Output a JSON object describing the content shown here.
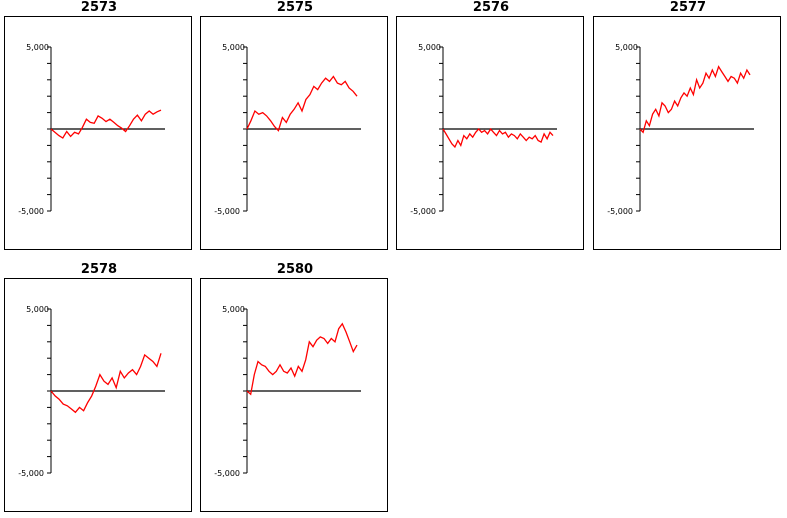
{
  "chart_data": [
    {
      "type": "line",
      "title": "2573",
      "ylim": [
        -5000,
        5000
      ],
      "yticks": [
        "5,000",
        "-5,000"
      ],
      "series": [
        {
          "color": "#ff0000",
          "x": [
            0,
            1,
            2,
            3,
            4,
            5,
            6,
            7,
            8,
            9,
            10,
            11,
            12,
            13,
            14,
            15,
            16,
            17,
            18,
            19,
            20,
            21,
            22,
            23,
            24,
            25,
            26,
            27,
            28
          ],
          "values": [
            0,
            -200,
            -400,
            -550,
            -150,
            -450,
            -200,
            -300,
            100,
            600,
            400,
            350,
            800,
            650,
            450,
            600,
            400,
            200,
            50,
            -150,
            200,
            600,
            850,
            500,
            900,
            1100,
            900,
            1050,
            1150
          ]
        }
      ]
    },
    {
      "type": "line",
      "title": "2575",
      "ylim": [
        -5000,
        5000
      ],
      "yticks": [
        "5,000",
        "-5,000"
      ],
      "series": [
        {
          "color": "#ff0000",
          "x": [
            0,
            1,
            2,
            3,
            4,
            5,
            6,
            7,
            8,
            9,
            10,
            11,
            12,
            13,
            14,
            15,
            16,
            17,
            18,
            19,
            20,
            21,
            22,
            23,
            24,
            25,
            26,
            27,
            28
          ],
          "values": [
            0,
            500,
            1100,
            900,
            1000,
            800,
            500,
            150,
            -100,
            700,
            400,
            900,
            1200,
            1600,
            1100,
            1800,
            2100,
            2600,
            2400,
            2800,
            3100,
            2900,
            3200,
            2800,
            2700,
            2900,
            2500,
            2300,
            2000
          ]
        }
      ]
    },
    {
      "type": "line",
      "title": "2576",
      "ylim": [
        -5000,
        5000
      ],
      "yticks": [
        "5,000",
        "-5,000"
      ],
      "series": [
        {
          "color": "#ff0000",
          "x": [
            0,
            1,
            2,
            3,
            4,
            5,
            6,
            7,
            8,
            9,
            10,
            11,
            12,
            13,
            14,
            15,
            16,
            17,
            18,
            19,
            20,
            21,
            22,
            23,
            24,
            25,
            26,
            27,
            28,
            29,
            30,
            31,
            32,
            33,
            34,
            35,
            36,
            37
          ],
          "values": [
            0,
            -300,
            -600,
            -900,
            -1100,
            -700,
            -1000,
            -400,
            -600,
            -300,
            -500,
            -200,
            0,
            -200,
            -100,
            -300,
            0,
            -200,
            -400,
            -100,
            -300,
            -200,
            -500,
            -300,
            -400,
            -600,
            -300,
            -500,
            -700,
            -500,
            -600,
            -400,
            -700,
            -800,
            -300,
            -600,
            -200,
            -400
          ]
        }
      ]
    },
    {
      "type": "line",
      "title": "2577",
      "ylim": [
        -5000,
        5000
      ],
      "yticks": [
        "5,000",
        "-5,000"
      ],
      "series": [
        {
          "color": "#ff0000",
          "x": [
            0,
            1,
            2,
            3,
            4,
            5,
            6,
            7,
            8,
            9,
            10,
            11,
            12,
            13,
            14,
            15,
            16,
            17,
            18,
            19,
            20,
            21,
            22,
            23,
            24,
            25,
            26,
            27,
            28,
            29,
            30,
            31,
            32,
            33,
            34,
            35
          ],
          "values": [
            0,
            -200,
            500,
            200,
            900,
            1200,
            800,
            1600,
            1400,
            1000,
            1200,
            1700,
            1400,
            1900,
            2200,
            2000,
            2500,
            2100,
            3000,
            2500,
            2800,
            3400,
            3100,
            3600,
            3200,
            3800,
            3500,
            3200,
            2900,
            3200,
            3100,
            2800,
            3400,
            3100,
            3600,
            3300
          ]
        }
      ]
    },
    {
      "type": "line",
      "title": "2578",
      "ylim": [
        -5000,
        5000
      ],
      "yticks": [
        "5,000",
        "-5,000"
      ],
      "series": [
        {
          "color": "#ff0000",
          "x": [
            0,
            1,
            2,
            3,
            4,
            5,
            6,
            7,
            8,
            9,
            10,
            11,
            12,
            13,
            14,
            15,
            16,
            17,
            18,
            19,
            20,
            21,
            22,
            23,
            24,
            25,
            26,
            27
          ],
          "values": [
            0,
            -300,
            -500,
            -800,
            -900,
            -1100,
            -1300,
            -1000,
            -1200,
            -700,
            -300,
            300,
            1000,
            600,
            400,
            800,
            200,
            1200,
            800,
            1100,
            1300,
            1000,
            1500,
            2200,
            2000,
            1800,
            1500,
            2300
          ]
        }
      ]
    },
    {
      "type": "line",
      "title": "2580",
      "ylim": [
        -5000,
        5000
      ],
      "yticks": [
        "5,000",
        "-5,000"
      ],
      "series": [
        {
          "color": "#ff0000",
          "x": [
            0,
            1,
            2,
            3,
            4,
            5,
            6,
            7,
            8,
            9,
            10,
            11,
            12,
            13,
            14,
            15,
            16,
            17,
            18,
            19,
            20,
            21,
            22,
            23,
            24,
            25,
            26,
            27,
            28,
            29,
            30
          ],
          "values": [
            0,
            -200,
            1000,
            1800,
            1600,
            1500,
            1200,
            1000,
            1200,
            1600,
            1200,
            1100,
            1400,
            900,
            1500,
            1200,
            1900,
            3000,
            2700,
            3100,
            3300,
            3200,
            2900,
            3200,
            3000,
            3800,
            4100,
            3600,
            3000,
            2400,
            2800
          ]
        }
      ]
    }
  ]
}
